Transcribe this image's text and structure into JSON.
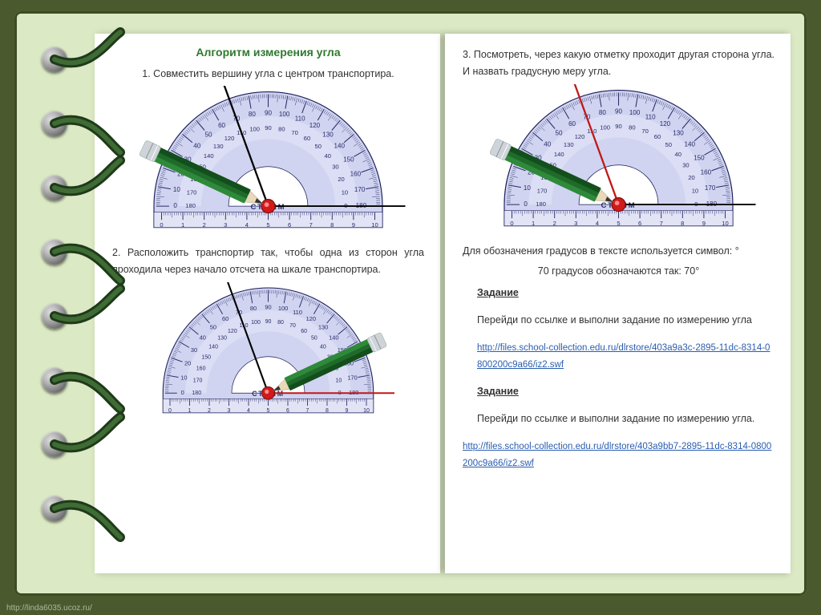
{
  "title": "Алгоритм измерения угла",
  "step1": "1. Совместить вершину угла с центром транспортира.",
  "step2": "2. Расположить транспортир так, чтобы одна из сторон угла проходила через начало отсчета на шкале транспортира.",
  "step3": "3. Посмотреть, через какую отметку проходит другая сторона угла. И назвать градусную меру угла.",
  "note_symbol": "Для обозначения градусов в тексте используется символ: °",
  "note_70": "70 градусов обозначаются так: 70°",
  "task_label": "Задание",
  "task_text": "Перейди по ссылке и выполни задание по измерению угла",
  "task_text2": "Перейди по ссылке и выполни задание по измерению угла.",
  "link1": "http://files.school-collection.edu.ru/dlrstore/403a9a3c-2895-11dc-8314-0800200c9a66/iz2.swf",
  "link2": "http://files.school-collection.edu.ru/dlrstore/403a9bb7-2895-11dc-8314-0800200c9a66/iz2.swf",
  "footer_url": "http://linda6035.ucoz.ru/",
  "protractor_style": {
    "body_fill": "#d0d4f0",
    "body_fill_light": "#e2e4f6",
    "outline": "#1a1c58",
    "tick_color": "#2a2c68",
    "label_color": "#2a2c68",
    "brand": "СТАММ",
    "brand_font_size": 10,
    "radius_outer": 150,
    "radius_inner_window": 52,
    "scale_labels_outer": [
      0,
      10,
      20,
      30,
      40,
      50,
      60,
      70,
      80,
      90,
      100,
      110,
      120,
      130,
      140,
      150,
      160,
      170,
      180
    ],
    "scale_labels_inner": [
      180,
      170,
      160,
      150,
      140,
      130,
      120,
      110,
      100,
      90,
      80,
      70,
      60,
      50,
      40,
      30,
      20,
      10,
      0
    ],
    "ruler_labels": [
      "0",
      "1",
      "2",
      "3",
      "4",
      "5",
      "6",
      "7",
      "8",
      "9",
      "10"
    ]
  },
  "angle_ray_color": "#c01818",
  "baseline_ray_color": "#c01818",
  "pivot_fill": "#d11a1a",
  "pencil_colors": {
    "body": "#1f6b2a",
    "ferrule": "#cfd4d8",
    "tip_wood": "#e8d9b8",
    "tip_lead": "#333"
  },
  "figures": {
    "f1": {
      "angle_deg": 70,
      "pencil_angle": 155,
      "baseline_red": false
    },
    "f2": {
      "angle_deg": 70,
      "pencil_angle": 25,
      "baseline_red": true
    },
    "f3": {
      "angle_deg": 70,
      "pencil_angle": 155,
      "baseline_red": false
    }
  },
  "binding_rings_y": [
    60,
    140,
    220,
    300,
    380,
    460,
    540,
    620
  ]
}
